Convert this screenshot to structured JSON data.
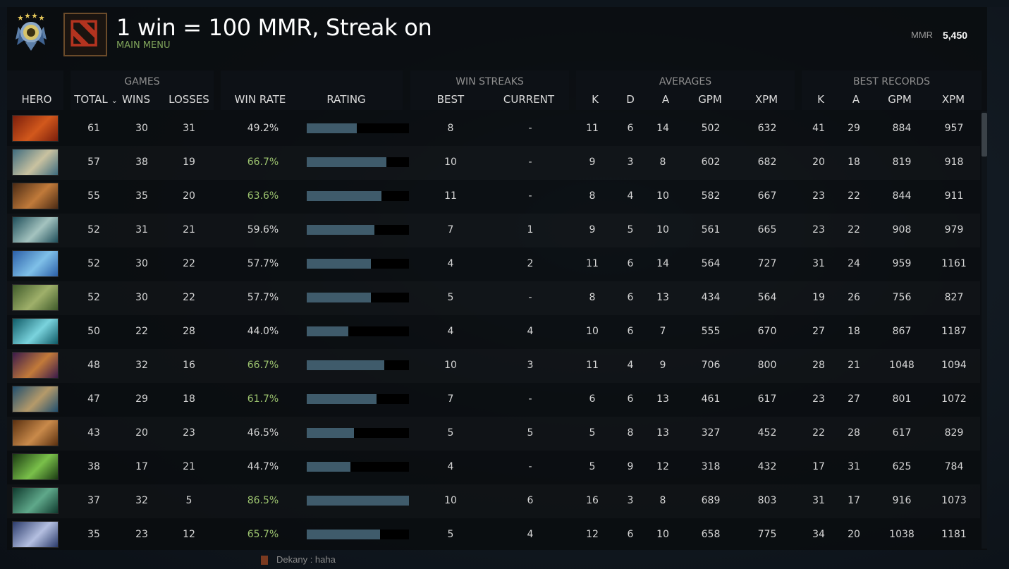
{
  "header": {
    "title": "1 win = 100 MMR, Streak on",
    "menu_link": "MAIN MENU",
    "mmr_label": "MMR",
    "mmr_value": "5,450",
    "rank_icon": "rank-medal-icon",
    "logo_icon": "dota-logo-icon"
  },
  "groups": {
    "games": "GAMES",
    "win_streaks": "WIN STREAKS",
    "averages": "AVERAGES",
    "best_records": "BEST RECORDS"
  },
  "columns": {
    "hero": "HERO",
    "total": "TOTAL",
    "sort_indicator": "⌄",
    "wins": "WINS",
    "losses": "LOSSES",
    "win_rate": "WIN RATE",
    "rating": "RATING",
    "best": "BEST",
    "current": "CURRENT",
    "k": "K",
    "d": "D",
    "a": "A",
    "gpm": "GPM",
    "xpm": "XPM",
    "bk": "K",
    "ba": "A",
    "bgpm": "GPM",
    "bxpm": "XPM"
  },
  "colors": {
    "win_rate_high": "#9dc46f",
    "win_rate_normal": "#d6d6d6",
    "rating_bar": "#3f5b6b",
    "menu_link": "#7fa35a"
  },
  "rows": [
    {
      "hero_colors": [
        "#7a1e0c",
        "#d2581c"
      ],
      "total": "61",
      "wins": "30",
      "losses": "31",
      "win_rate": "49.2%",
      "win_rate_high": false,
      "rating": 0.49,
      "best_streak": "8",
      "current_streak": "-",
      "k": "11",
      "d": "6",
      "a": "14",
      "gpm": "502",
      "xpm": "632",
      "best_k": "41",
      "best_a": "29",
      "best_gpm": "884",
      "best_xpm": "957"
    },
    {
      "hero_colors": [
        "#3d6b7e",
        "#c9c2a0"
      ],
      "total": "57",
      "wins": "38",
      "losses": "19",
      "win_rate": "66.7%",
      "win_rate_high": true,
      "rating": 0.78,
      "best_streak": "10",
      "current_streak": "-",
      "k": "9",
      "d": "3",
      "a": "8",
      "gpm": "602",
      "xpm": "682",
      "best_k": "20",
      "best_a": "18",
      "best_gpm": "819",
      "best_xpm": "918"
    },
    {
      "hero_colors": [
        "#4a2a14",
        "#c07a3a"
      ],
      "total": "55",
      "wins": "35",
      "losses": "20",
      "win_rate": "63.6%",
      "win_rate_high": true,
      "rating": 0.73,
      "best_streak": "11",
      "current_streak": "-",
      "k": "8",
      "d": "4",
      "a": "10",
      "gpm": "582",
      "xpm": "667",
      "best_k": "23",
      "best_a": "22",
      "best_gpm": "844",
      "best_xpm": "911"
    },
    {
      "hero_colors": [
        "#1e4e5a",
        "#a4c3bf"
      ],
      "total": "52",
      "wins": "31",
      "losses": "21",
      "win_rate": "59.6%",
      "win_rate_high": false,
      "rating": 0.66,
      "best_streak": "7",
      "current_streak": "1",
      "k": "9",
      "d": "5",
      "a": "10",
      "gpm": "561",
      "xpm": "665",
      "best_k": "23",
      "best_a": "22",
      "best_gpm": "908",
      "best_xpm": "979"
    },
    {
      "hero_colors": [
        "#2b5fa8",
        "#7fc0e8"
      ],
      "total": "52",
      "wins": "30",
      "losses": "22",
      "win_rate": "57.7%",
      "win_rate_high": false,
      "rating": 0.63,
      "best_streak": "4",
      "current_streak": "2",
      "k": "11",
      "d": "6",
      "a": "14",
      "gpm": "564",
      "xpm": "727",
      "best_k": "31",
      "best_a": "24",
      "best_gpm": "959",
      "best_xpm": "1161"
    },
    {
      "hero_colors": [
        "#3f5a2a",
        "#9fb06a"
      ],
      "total": "52",
      "wins": "30",
      "losses": "22",
      "win_rate": "57.7%",
      "win_rate_high": false,
      "rating": 0.63,
      "best_streak": "5",
      "current_streak": "-",
      "k": "8",
      "d": "6",
      "a": "13",
      "gpm": "434",
      "xpm": "564",
      "best_k": "19",
      "best_a": "26",
      "best_gpm": "756",
      "best_xpm": "827"
    },
    {
      "hero_colors": [
        "#0f5a66",
        "#7ad3dd"
      ],
      "total": "50",
      "wins": "22",
      "losses": "28",
      "win_rate": "44.0%",
      "win_rate_high": false,
      "rating": 0.41,
      "best_streak": "4",
      "current_streak": "4",
      "k": "10",
      "d": "6",
      "a": "7",
      "gpm": "555",
      "xpm": "670",
      "best_k": "27",
      "best_a": "18",
      "best_gpm": "867",
      "best_xpm": "1187"
    },
    {
      "hero_colors": [
        "#3a1a4a",
        "#c27a3a"
      ],
      "total": "48",
      "wins": "32",
      "losses": "16",
      "win_rate": "66.7%",
      "win_rate_high": true,
      "rating": 0.76,
      "best_streak": "10",
      "current_streak": "3",
      "k": "11",
      "d": "4",
      "a": "9",
      "gpm": "706",
      "xpm": "800",
      "best_k": "28",
      "best_a": "21",
      "best_gpm": "1048",
      "best_xpm": "1094"
    },
    {
      "hero_colors": [
        "#1f4e6e",
        "#b59a6a"
      ],
      "total": "47",
      "wins": "29",
      "losses": "18",
      "win_rate": "61.7%",
      "win_rate_high": true,
      "rating": 0.68,
      "best_streak": "7",
      "current_streak": "-",
      "k": "6",
      "d": "6",
      "a": "13",
      "gpm": "461",
      "xpm": "617",
      "best_k": "23",
      "best_a": "27",
      "best_gpm": "801",
      "best_xpm": "1072"
    },
    {
      "hero_colors": [
        "#5a3010",
        "#c98a4a"
      ],
      "total": "43",
      "wins": "20",
      "losses": "23",
      "win_rate": "46.5%",
      "win_rate_high": false,
      "rating": 0.46,
      "best_streak": "5",
      "current_streak": "5",
      "k": "5",
      "d": "8",
      "a": "13",
      "gpm": "327",
      "xpm": "452",
      "best_k": "22",
      "best_a": "28",
      "best_gpm": "617",
      "best_xpm": "829"
    },
    {
      "hero_colors": [
        "#1a3a12",
        "#7ac04a"
      ],
      "total": "38",
      "wins": "17",
      "losses": "21",
      "win_rate": "44.7%",
      "win_rate_high": false,
      "rating": 0.43,
      "best_streak": "4",
      "current_streak": "-",
      "k": "5",
      "d": "9",
      "a": "12",
      "gpm": "318",
      "xpm": "432",
      "best_k": "17",
      "best_a": "31",
      "best_gpm": "625",
      "best_xpm": "784"
    },
    {
      "hero_colors": [
        "#0f3a2e",
        "#5fa88a"
      ],
      "total": "37",
      "wins": "32",
      "losses": "5",
      "win_rate": "86.5%",
      "win_rate_high": true,
      "rating": 1.0,
      "best_streak": "10",
      "current_streak": "6",
      "k": "16",
      "d": "3",
      "a": "8",
      "gpm": "689",
      "xpm": "803",
      "best_k": "31",
      "best_a": "17",
      "best_gpm": "916",
      "best_xpm": "1073"
    },
    {
      "hero_colors": [
        "#2a3a6a",
        "#b4bfe0"
      ],
      "total": "35",
      "wins": "23",
      "losses": "12",
      "win_rate": "65.7%",
      "win_rate_high": true,
      "rating": 0.72,
      "best_streak": "5",
      "current_streak": "4",
      "k": "12",
      "d": "6",
      "a": "10",
      "gpm": "658",
      "xpm": "775",
      "best_k": "34",
      "best_a": "20",
      "best_gpm": "1038",
      "best_xpm": "1181"
    }
  ],
  "chat": {
    "line": "Dekany : haha"
  }
}
